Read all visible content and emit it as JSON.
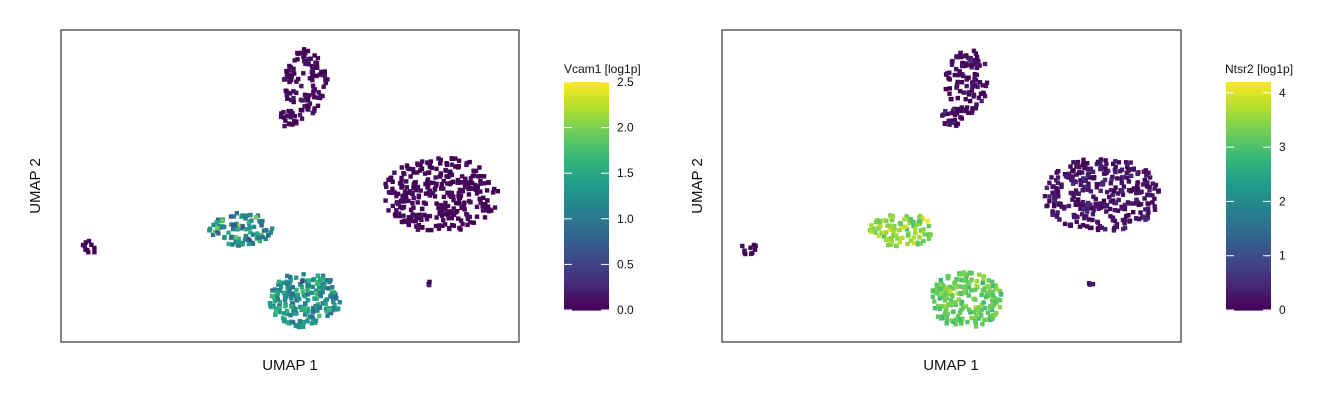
{
  "chart_data": [
    {
      "type": "scatter",
      "subtype": "hexbin-umap",
      "xlabel": "UMAP 1",
      "ylabel": "UMAP 2",
      "axis_ticks": false,
      "grid": false,
      "legend": {
        "title": "Vcam1 [log1p]",
        "placement": "right",
        "colormap": "viridis",
        "range": [
          0,
          2.5
        ],
        "ticks": [
          "0.0",
          "0.5",
          "1.0",
          "1.5",
          "2.0",
          "2.5"
        ],
        "tick_values": [
          0,
          0.5,
          1.0,
          1.5,
          2.0,
          2.5
        ]
      },
      "clusters": [
        {
          "name": "top",
          "mean_value": 0.05,
          "spread": 0.1
        },
        {
          "name": "right",
          "mean_value": 0.03,
          "spread": 0.08
        },
        {
          "name": "left-middle",
          "mean_value": 1.2,
          "spread": 0.5
        },
        {
          "name": "bottom",
          "mean_value": 1.3,
          "spread": 0.4
        },
        {
          "name": "far-left",
          "mean_value": 0.02,
          "spread": 0.05
        },
        {
          "name": "small-right",
          "mean_value": 0.1,
          "spread": 0.1
        }
      ]
    },
    {
      "type": "scatter",
      "subtype": "hexbin-umap",
      "xlabel": "UMAP 1",
      "ylabel": "UMAP 2",
      "axis_ticks": false,
      "grid": false,
      "legend": {
        "title": "Ntsr2 [log1p]",
        "placement": "right",
        "colormap": "viridis",
        "range": [
          0,
          4.2
        ],
        "ticks": [
          "0",
          "1",
          "2",
          "3",
          "4"
        ],
        "tick_values": [
          0,
          1,
          2,
          3,
          4
        ]
      },
      "clusters": [
        {
          "name": "top",
          "mean_value": 0.1,
          "spread": 0.25
        },
        {
          "name": "right",
          "mean_value": 0.2,
          "spread": 0.2
        },
        {
          "name": "left-middle",
          "mean_value": 3.5,
          "spread": 0.4
        },
        {
          "name": "bottom",
          "mean_value": 3.2,
          "spread": 0.3
        },
        {
          "name": "far-left",
          "mean_value": 0.1,
          "spread": 0.1
        },
        {
          "name": "small-right",
          "mean_value": 0.2,
          "spread": 0.2
        }
      ]
    }
  ]
}
